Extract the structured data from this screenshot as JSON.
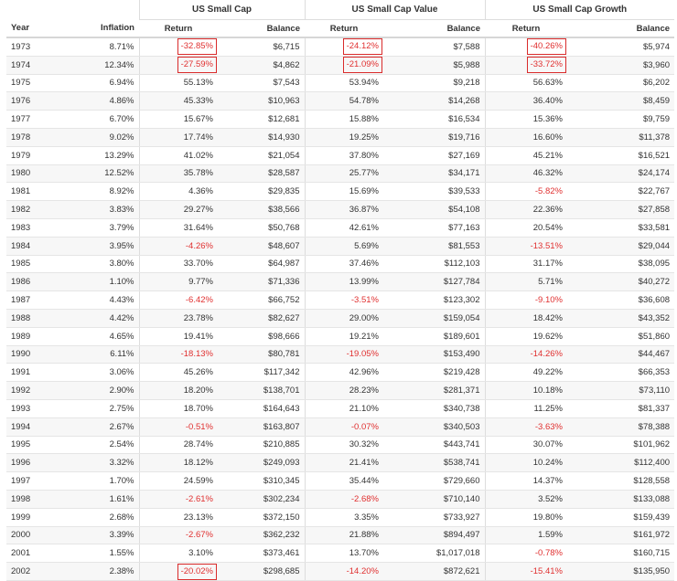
{
  "headers": {
    "year": "Year",
    "inflation": "Inflation",
    "groups": [
      "US Small Cap",
      "US Small Cap Value",
      "US Small Cap Growth"
    ],
    "return": "Return",
    "balance": "Balance"
  },
  "colors": {
    "negative": "#e03030",
    "highlight": "#d92b2b",
    "stripe": "#f7f7f7"
  },
  "rows": [
    {
      "year": "1973",
      "inflation": "8.71%",
      "scc_return": "-32.85%",
      "scc_balance": "$6,715",
      "scv_return": "-24.12%",
      "scv_balance": "$7,588",
      "scg_return": "-40.26%",
      "scg_balance": "$5,974"
    },
    {
      "year": "1974",
      "inflation": "12.34%",
      "scc_return": "-27.59%",
      "scc_balance": "$4,862",
      "scv_return": "-21.09%",
      "scv_balance": "$5,988",
      "scg_return": "-33.72%",
      "scg_balance": "$3,960"
    },
    {
      "year": "1975",
      "inflation": "6.94%",
      "scc_return": "55.13%",
      "scc_balance": "$7,543",
      "scv_return": "53.94%",
      "scv_balance": "$9,218",
      "scg_return": "56.63%",
      "scg_balance": "$6,202"
    },
    {
      "year": "1976",
      "inflation": "4.86%",
      "scc_return": "45.33%",
      "scc_balance": "$10,963",
      "scv_return": "54.78%",
      "scv_balance": "$14,268",
      "scg_return": "36.40%",
      "scg_balance": "$8,459"
    },
    {
      "year": "1977",
      "inflation": "6.70%",
      "scc_return": "15.67%",
      "scc_balance": "$12,681",
      "scv_return": "15.88%",
      "scv_balance": "$16,534",
      "scg_return": "15.36%",
      "scg_balance": "$9,759"
    },
    {
      "year": "1978",
      "inflation": "9.02%",
      "scc_return": "17.74%",
      "scc_balance": "$14,930",
      "scv_return": "19.25%",
      "scv_balance": "$19,716",
      "scg_return": "16.60%",
      "scg_balance": "$11,378"
    },
    {
      "year": "1979",
      "inflation": "13.29%",
      "scc_return": "41.02%",
      "scc_balance": "$21,054",
      "scv_return": "37.80%",
      "scv_balance": "$27,169",
      "scg_return": "45.21%",
      "scg_balance": "$16,521"
    },
    {
      "year": "1980",
      "inflation": "12.52%",
      "scc_return": "35.78%",
      "scc_balance": "$28,587",
      "scv_return": "25.77%",
      "scv_balance": "$34,171",
      "scg_return": "46.32%",
      "scg_balance": "$24,174"
    },
    {
      "year": "1981",
      "inflation": "8.92%",
      "scc_return": "4.36%",
      "scc_balance": "$29,835",
      "scv_return": "15.69%",
      "scv_balance": "$39,533",
      "scg_return": "-5.82%",
      "scg_balance": "$22,767"
    },
    {
      "year": "1982",
      "inflation": "3.83%",
      "scc_return": "29.27%",
      "scc_balance": "$38,566",
      "scv_return": "36.87%",
      "scv_balance": "$54,108",
      "scg_return": "22.36%",
      "scg_balance": "$27,858"
    },
    {
      "year": "1983",
      "inflation": "3.79%",
      "scc_return": "31.64%",
      "scc_balance": "$50,768",
      "scv_return": "42.61%",
      "scv_balance": "$77,163",
      "scg_return": "20.54%",
      "scg_balance": "$33,581"
    },
    {
      "year": "1984",
      "inflation": "3.95%",
      "scc_return": "-4.26%",
      "scc_balance": "$48,607",
      "scv_return": "5.69%",
      "scv_balance": "$81,553",
      "scg_return": "-13.51%",
      "scg_balance": "$29,044"
    },
    {
      "year": "1985",
      "inflation": "3.80%",
      "scc_return": "33.70%",
      "scc_balance": "$64,987",
      "scv_return": "37.46%",
      "scv_balance": "$112,103",
      "scg_return": "31.17%",
      "scg_balance": "$38,095"
    },
    {
      "year": "1986",
      "inflation": "1.10%",
      "scc_return": "9.77%",
      "scc_balance": "$71,336",
      "scv_return": "13.99%",
      "scv_balance": "$127,784",
      "scg_return": "5.71%",
      "scg_balance": "$40,272"
    },
    {
      "year": "1987",
      "inflation": "4.43%",
      "scc_return": "-6.42%",
      "scc_balance": "$66,752",
      "scv_return": "-3.51%",
      "scv_balance": "$123,302",
      "scg_return": "-9.10%",
      "scg_balance": "$36,608"
    },
    {
      "year": "1988",
      "inflation": "4.42%",
      "scc_return": "23.78%",
      "scc_balance": "$82,627",
      "scv_return": "29.00%",
      "scv_balance": "$159,054",
      "scg_return": "18.42%",
      "scg_balance": "$43,352"
    },
    {
      "year": "1989",
      "inflation": "4.65%",
      "scc_return": "19.41%",
      "scc_balance": "$98,666",
      "scv_return": "19.21%",
      "scv_balance": "$189,601",
      "scg_return": "19.62%",
      "scg_balance": "$51,860"
    },
    {
      "year": "1990",
      "inflation": "6.11%",
      "scc_return": "-18.13%",
      "scc_balance": "$80,781",
      "scv_return": "-19.05%",
      "scv_balance": "$153,490",
      "scg_return": "-14.26%",
      "scg_balance": "$44,467"
    },
    {
      "year": "1991",
      "inflation": "3.06%",
      "scc_return": "45.26%",
      "scc_balance": "$117,342",
      "scv_return": "42.96%",
      "scv_balance": "$219,428",
      "scg_return": "49.22%",
      "scg_balance": "$66,353"
    },
    {
      "year": "1992",
      "inflation": "2.90%",
      "scc_return": "18.20%",
      "scc_balance": "$138,701",
      "scv_return": "28.23%",
      "scv_balance": "$281,371",
      "scg_return": "10.18%",
      "scg_balance": "$73,110"
    },
    {
      "year": "1993",
      "inflation": "2.75%",
      "scc_return": "18.70%",
      "scc_balance": "$164,643",
      "scv_return": "21.10%",
      "scv_balance": "$340,738",
      "scg_return": "11.25%",
      "scg_balance": "$81,337"
    },
    {
      "year": "1994",
      "inflation": "2.67%",
      "scc_return": "-0.51%",
      "scc_balance": "$163,807",
      "scv_return": "-0.07%",
      "scv_balance": "$340,503",
      "scg_return": "-3.63%",
      "scg_balance": "$78,388"
    },
    {
      "year": "1995",
      "inflation": "2.54%",
      "scc_return": "28.74%",
      "scc_balance": "$210,885",
      "scv_return": "30.32%",
      "scv_balance": "$443,741",
      "scg_return": "30.07%",
      "scg_balance": "$101,962"
    },
    {
      "year": "1996",
      "inflation": "3.32%",
      "scc_return": "18.12%",
      "scc_balance": "$249,093",
      "scv_return": "21.41%",
      "scv_balance": "$538,741",
      "scg_return": "10.24%",
      "scg_balance": "$112,400"
    },
    {
      "year": "1997",
      "inflation": "1.70%",
      "scc_return": "24.59%",
      "scc_balance": "$310,345",
      "scv_return": "35.44%",
      "scv_balance": "$729,660",
      "scg_return": "14.37%",
      "scg_balance": "$128,558"
    },
    {
      "year": "1998",
      "inflation": "1.61%",
      "scc_return": "-2.61%",
      "scc_balance": "$302,234",
      "scv_return": "-2.68%",
      "scv_balance": "$710,140",
      "scg_return": "3.52%",
      "scg_balance": "$133,088"
    },
    {
      "year": "1999",
      "inflation": "2.68%",
      "scc_return": "23.13%",
      "scc_balance": "$372,150",
      "scv_return": "3.35%",
      "scv_balance": "$733,927",
      "scg_return": "19.80%",
      "scg_balance": "$159,439"
    },
    {
      "year": "2000",
      "inflation": "3.39%",
      "scc_return": "-2.67%",
      "scc_balance": "$362,232",
      "scv_return": "21.88%",
      "scv_balance": "$894,497",
      "scg_return": "1.59%",
      "scg_balance": "$161,972"
    },
    {
      "year": "2001",
      "inflation": "1.55%",
      "scc_return": "3.10%",
      "scc_balance": "$373,461",
      "scv_return": "13.70%",
      "scv_balance": "$1,017,018",
      "scg_return": "-0.78%",
      "scg_balance": "$160,715"
    },
    {
      "year": "2002",
      "inflation": "2.38%",
      "scc_return": "-20.02%",
      "scc_balance": "$298,685",
      "scv_return": "-14.20%",
      "scv_balance": "$872,621",
      "scg_return": "-15.41%",
      "scg_balance": "$135,950"
    }
  ]
}
